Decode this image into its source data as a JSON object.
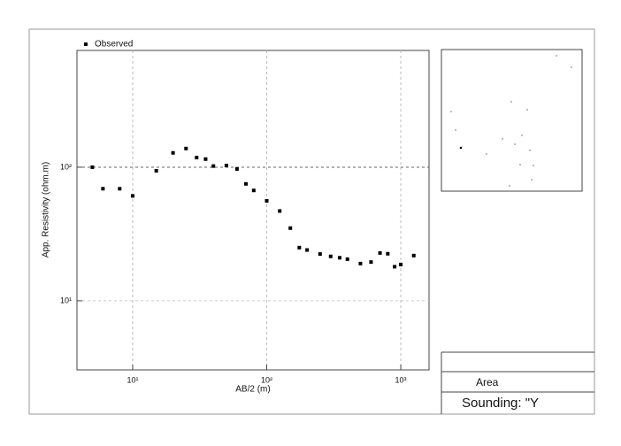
{
  "chart_data": {
    "type": "scatter",
    "x_label": "AB/2 (m)",
    "y_label": "App. Resistivity (ohm.m)",
    "x": [
      5,
      6,
      8,
      10,
      15,
      20,
      25,
      30,
      35,
      40,
      50,
      60,
      70,
      80,
      100,
      125,
      150,
      175,
      200,
      250,
      300,
      350,
      400,
      500,
      600,
      700,
      800,
      900,
      1000,
      1250
    ],
    "series": [
      {
        "name": "Observed",
        "color": "#000000",
        "values": [
          100,
          69,
          69,
          61,
          94,
          128,
          138,
          118,
          115,
          102,
          103,
          97,
          75,
          67,
          56,
          47,
          35,
          25,
          24,
          22.4,
          21.5,
          21,
          20.5,
          19,
          19.5,
          22.8,
          22.5,
          18,
          18.7,
          21.8
        ]
      }
    ],
    "xscale": "log",
    "yscale": "log",
    "xlim": [
      3.84,
      1625
    ],
    "ylim": [
      3.04,
      748
    ],
    "xticks": [
      {
        "value": 10,
        "label": "10¹"
      },
      {
        "value": 100,
        "label": "10²"
      },
      {
        "value": 1000,
        "label": "10³"
      }
    ],
    "yticks": [
      {
        "value": 10,
        "label": "10¹"
      },
      {
        "value": 100,
        "label": "10²"
      }
    ],
    "grid": true,
    "legend": "upper left"
  },
  "panel": {
    "area": "Area",
    "sounding": "Sounding: \"Y"
  }
}
